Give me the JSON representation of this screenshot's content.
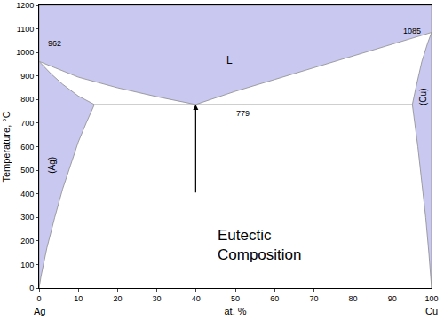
{
  "chart_data": {
    "type": "phase_diagram",
    "xlabel": "at. %",
    "ylabel": "Temperature, °C",
    "components": [
      "Ag",
      "Cu"
    ],
    "xlim": [
      0,
      100
    ],
    "xticks": [
      0,
      10,
      20,
      30,
      40,
      50,
      60,
      70,
      80,
      90,
      100
    ],
    "ylim": [
      0,
      1200
    ],
    "yticks": [
      0,
      100,
      200,
      300,
      400,
      500,
      600,
      700,
      800,
      900,
      1000,
      1100,
      1200
    ],
    "grid": false,
    "series": [
      {
        "name": "L",
        "type": "area",
        "color": "#c8c8f0",
        "label_at": [
          48.6,
          966
        ],
        "x": [
          0,
          10,
          20,
          30,
          39.9,
          50,
          60,
          70,
          80,
          90,
          100,
          100,
          0,
          0
        ],
        "values": [
          962,
          895,
          850,
          812,
          779,
          835,
          885,
          935,
          985,
          1035,
          1085,
          1200,
          1200,
          962
        ]
      },
      {
        "name": "(Ag)",
        "type": "area",
        "color": "#c8c8f0",
        "label_at": [
          3.4,
          520
        ],
        "x": [
          0,
          0,
          3,
          6,
          10,
          14.1,
          12,
          10,
          8,
          6,
          4,
          2,
          0.5,
          0
        ],
        "values": [
          0,
          962,
          910,
          865,
          815,
          779,
          700,
          620,
          520,
          420,
          300,
          170,
          50,
          0
        ]
      },
      {
        "name": "(Cu)",
        "type": "area",
        "color": "#c8c8f0",
        "label_at": [
          97.8,
          810
        ],
        "x": [
          100,
          100,
          99,
          97.5,
          96,
          95.1,
          96.5,
          97.5,
          98.5,
          99.3,
          100
        ],
        "values": [
          0,
          1085,
          1040,
          960,
          850,
          779,
          600,
          450,
          300,
          150,
          0
        ]
      },
      {
        "type": "line",
        "color": "#999999",
        "x": [
          14.1,
          95.1
        ],
        "values": [
          779,
          779
        ]
      }
    ],
    "annotations": [
      {
        "text": "962",
        "x": 4,
        "y": 1040
      },
      {
        "text": "1085",
        "x": 95,
        "y": 1090
      },
      {
        "text": "779",
        "x": 52,
        "y": 742
      },
      {
        "text": "Eutectic\nComposition",
        "x": 45,
        "y": 183
      }
    ],
    "arrow": {
      "x": 39.9,
      "y": [
        400,
        779
      ]
    }
  }
}
